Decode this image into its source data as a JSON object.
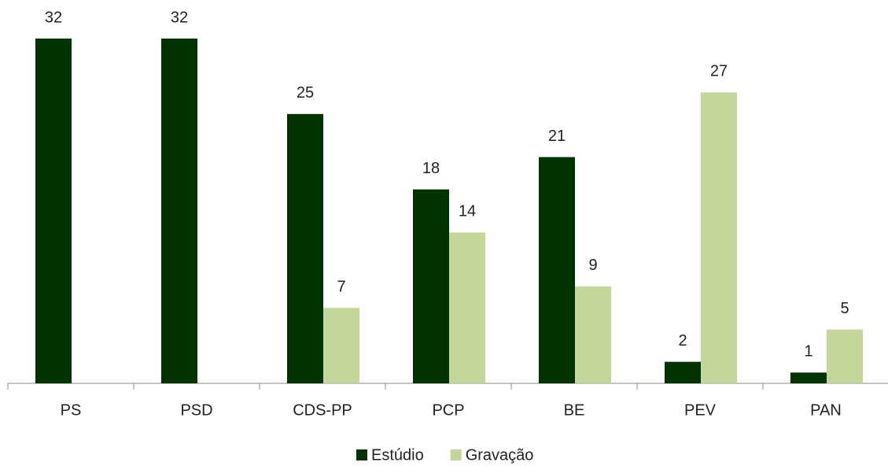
{
  "chart_data": {
    "type": "bar",
    "categories": [
      "PS",
      "PSD",
      "CDS-PP",
      "PCP",
      "BE",
      "PEV",
      "PAN"
    ],
    "series": [
      {
        "name": "Estúdio",
        "color": "#003300",
        "values": [
          32,
          32,
          25,
          18,
          21,
          2,
          1
        ]
      },
      {
        "name": "Gravação",
        "color": "#c4d79b",
        "values": [
          null,
          null,
          7,
          14,
          9,
          27,
          5
        ]
      }
    ],
    "legend": "bottom"
  }
}
